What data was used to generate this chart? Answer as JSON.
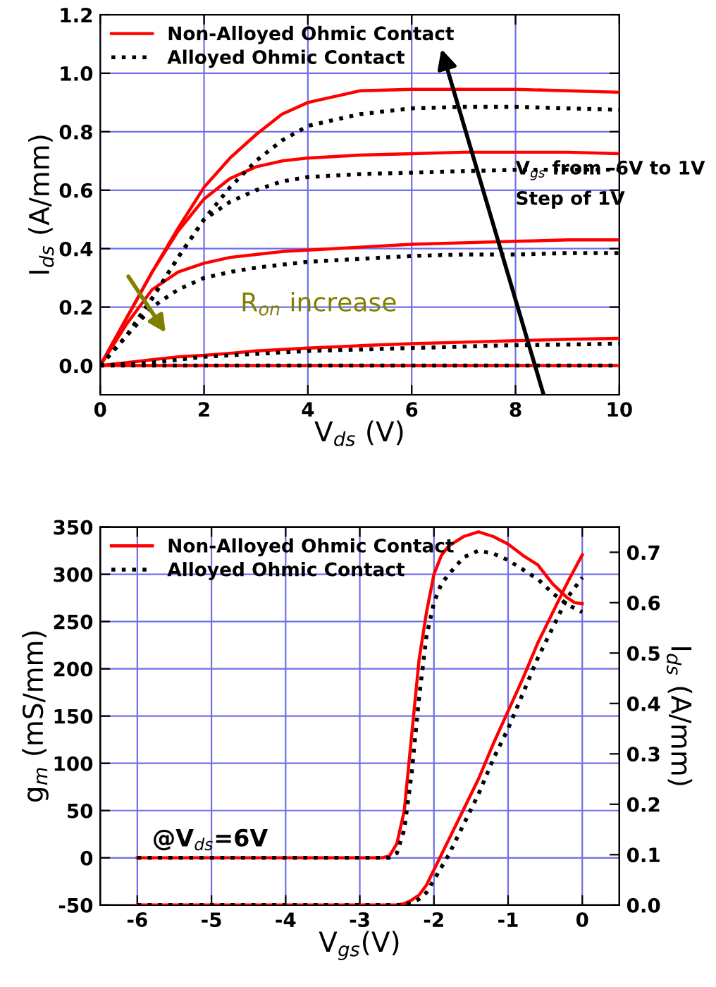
{
  "chart_data": [
    {
      "type": "line",
      "xlabel": "V$_{ds}$ (V)",
      "ylabel": "I$_{ds}$ (A/mm)",
      "x": [
        0,
        0.5,
        1,
        1.5,
        2,
        2.5,
        3,
        3.5,
        4,
        5,
        6,
        7,
        8,
        9,
        10
      ],
      "xlim": [
        0,
        10
      ],
      "xticks": [
        0,
        2,
        4,
        6,
        8,
        10
      ],
      "ylim": [
        -0.1,
        1.2
      ],
      "yticks": [
        {
          "value": 0,
          "label": "0.0"
        },
        0.2,
        0.4,
        0.6,
        0.8,
        {
          "value": 1,
          "label": "1.0"
        },
        1.2
      ],
      "grid": true,
      "legend": "top left",
      "marker": "none",
      "annotations": [
        "V$_{gs}$ from -6V to 1V",
        "Step of 1V",
        "R$_{on}$ increase"
      ],
      "series": [
        {
          "name": "Non-Alloyed Ohmic Contact",
          "color": "#ff0000",
          "line_style": "solid",
          "values": [
            0,
            0.16,
            0.32,
            0.47,
            0.61,
            0.71,
            0.79,
            0.86,
            0.9,
            0.94,
            0.945,
            0.945,
            0.945,
            0.94,
            0.935
          ]
        },
        {
          "color": "#ff0000",
          "line_style": "solid",
          "values": [
            0,
            0.16,
            0.32,
            0.46,
            0.57,
            0.64,
            0.68,
            0.7,
            0.71,
            0.72,
            0.725,
            0.73,
            0.73,
            0.73,
            0.725
          ]
        },
        {
          "color": "#ff0000",
          "line_style": "solid",
          "values": [
            0,
            0.14,
            0.26,
            0.32,
            0.35,
            0.37,
            0.38,
            0.39,
            0.395,
            0.405,
            0.415,
            0.42,
            0.425,
            0.43,
            0.43
          ]
        },
        {
          "color": "#ff0000",
          "line_style": "solid",
          "values": [
            0,
            0.01,
            0.02,
            0.03,
            0.035,
            0.042,
            0.05,
            0.055,
            0.06,
            0.068,
            0.075,
            0.08,
            0.085,
            0.09,
            0.093
          ]
        },
        {
          "color": "#ff0000",
          "line_style": "solid",
          "values": [
            0,
            0,
            0,
            0,
            0,
            0,
            0,
            0,
            0,
            0,
            0,
            0,
            0,
            0,
            0
          ]
        },
        {
          "name": "Alloyed Ohmic Contact",
          "color": "#000000",
          "line_style": "dotted",
          "values": [
            0,
            0.1,
            0.23,
            0.37,
            0.5,
            0.61,
            0.7,
            0.77,
            0.82,
            0.86,
            0.88,
            0.885,
            0.885,
            0.88,
            0.875
          ]
        },
        {
          "color": "#000000",
          "line_style": "dotted",
          "values": [
            0,
            0.1,
            0.23,
            0.37,
            0.5,
            0.56,
            0.6,
            0.63,
            0.645,
            0.655,
            0.66,
            0.665,
            0.67,
            0.67,
            0.67
          ]
        },
        {
          "color": "#000000",
          "line_style": "dotted",
          "values": [
            0,
            0.1,
            0.2,
            0.26,
            0.3,
            0.32,
            0.335,
            0.345,
            0.355,
            0.365,
            0.375,
            0.38,
            0.38,
            0.385,
            0.385
          ]
        },
        {
          "color": "#000000",
          "line_style": "dotted",
          "values": [
            0,
            0.005,
            0.01,
            0.02,
            0.03,
            0.035,
            0.04,
            0.045,
            0.05,
            0.055,
            0.06,
            0.065,
            0.07,
            0.072,
            0.075
          ]
        },
        {
          "color": "#000000",
          "line_style": "dotted",
          "values": [
            0,
            0,
            0,
            0,
            0,
            0,
            0,
            0,
            0,
            0,
            0,
            0,
            0,
            0,
            0
          ]
        }
      ]
    },
    {
      "type": "line",
      "xlabel": "V$_{gs}$(V)",
      "ylabel": "g$_{m}$ (mS/mm)",
      "y2label": "I$_{ds}$ (A/mm)",
      "xlim": [
        -6.5,
        0.5
      ],
      "xticks": [
        -6,
        -5,
        -4,
        -3,
        -2,
        -1,
        0
      ],
      "ylim": [
        -50,
        350
      ],
      "yticks": [
        -50,
        0,
        50,
        100,
        150,
        200,
        250,
        300,
        350
      ],
      "y2lim": [
        0,
        0.75
      ],
      "y2ticks": [
        {
          "value": 0,
          "label": "0.0"
        },
        0.1,
        0.2,
        0.3,
        0.4,
        0.5,
        0.6,
        0.7
      ],
      "grid": true,
      "legend": "top left",
      "marker": "none",
      "annotations": [
        "@V$_{ds}$=6V"
      ],
      "series": [
        {
          "name": "Non-Alloyed Ohmic Contact",
          "color": "#ff0000",
          "line_style": "solid",
          "x": [
            -6,
            -2.7,
            -2.6,
            -2.5,
            -2.4,
            -2.3,
            -2.2,
            -2.1,
            -2.0,
            -1.9,
            -1.8,
            -1.6,
            -1.4,
            -1.2,
            -1.0,
            -0.8,
            -0.6,
            -0.4,
            -0.2,
            -0.1,
            0
          ],
          "values": [
            0,
            0,
            2,
            15,
            50,
            130,
            210,
            260,
            300,
            320,
            330,
            340,
            345,
            340,
            332,
            320,
            310,
            290,
            275,
            270,
            269
          ]
        },
        {
          "name": "Alloyed Ohmic Contact",
          "color": "#000000",
          "line_style": "dotted",
          "x": [
            -6,
            -2.6,
            -2.5,
            -2.4,
            -2.3,
            -2.2,
            -2.1,
            -2.0,
            -1.9,
            -1.8,
            -1.6,
            -1.4,
            -1.2,
            -1.0,
            -0.8,
            -0.6,
            -0.4,
            -0.2,
            0
          ],
          "values": [
            0,
            0,
            5,
            30,
            90,
            170,
            235,
            270,
            290,
            300,
            318,
            325,
            322,
            315,
            305,
            295,
            280,
            268,
            260
          ]
        },
        {
          "color": "#ff0000",
          "line_style": "solid",
          "axis": "y2",
          "x": [
            -6,
            -2.5,
            -2.4,
            -2.3,
            -2.2,
            -2.1,
            -2.0,
            -1.8,
            -1.6,
            -1.4,
            -1.2,
            -1.0,
            -0.8,
            -0.6,
            -0.4,
            -0.2,
            0
          ],
          "values": [
            0,
            0,
            0.003,
            0.01,
            0.02,
            0.04,
            0.07,
            0.13,
            0.19,
            0.25,
            0.32,
            0.385,
            0.45,
            0.52,
            0.58,
            0.64,
            0.695
          ]
        },
        {
          "color": "#000000",
          "line_style": "dotted",
          "axis": "y2",
          "x": [
            -6,
            -2.4,
            -2.3,
            -2.2,
            -2.1,
            -2.0,
            -1.8,
            -1.6,
            -1.4,
            -1.2,
            -1.0,
            -0.8,
            -0.6,
            -0.4,
            -0.2,
            0
          ],
          "values": [
            0,
            0,
            0.005,
            0.012,
            0.025,
            0.05,
            0.1,
            0.16,
            0.22,
            0.29,
            0.35,
            0.42,
            0.49,
            0.55,
            0.61,
            0.65
          ]
        }
      ]
    }
  ]
}
